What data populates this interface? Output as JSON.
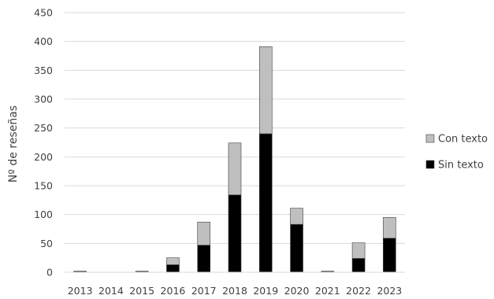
{
  "chart_data": {
    "type": "bar",
    "stacked": true,
    "categories": [
      "2013",
      "2014",
      "2015",
      "2016",
      "2017",
      "2018",
      "2019",
      "2020",
      "2021",
      "2022",
      "2023"
    ],
    "series": [
      {
        "name": "Sin texto",
        "color": "#000000",
        "values": [
          1,
          0,
          1,
          13,
          47,
          134,
          240,
          83,
          1,
          24,
          59
        ]
      },
      {
        "name": "Con texto",
        "color": "#bfbfbf",
        "values": [
          1,
          0,
          1,
          12,
          40,
          90,
          151,
          28,
          1,
          27,
          36
        ]
      }
    ],
    "ylabel": "Nº de reseñas",
    "xlabel": "",
    "ylim": [
      0,
      450
    ],
    "yticks": [
      0,
      50,
      100,
      150,
      200,
      250,
      300,
      350,
      400,
      450
    ],
    "grid": true,
    "legend_position": "right",
    "legend_order": [
      "Con texto",
      "Sin texto"
    ]
  }
}
